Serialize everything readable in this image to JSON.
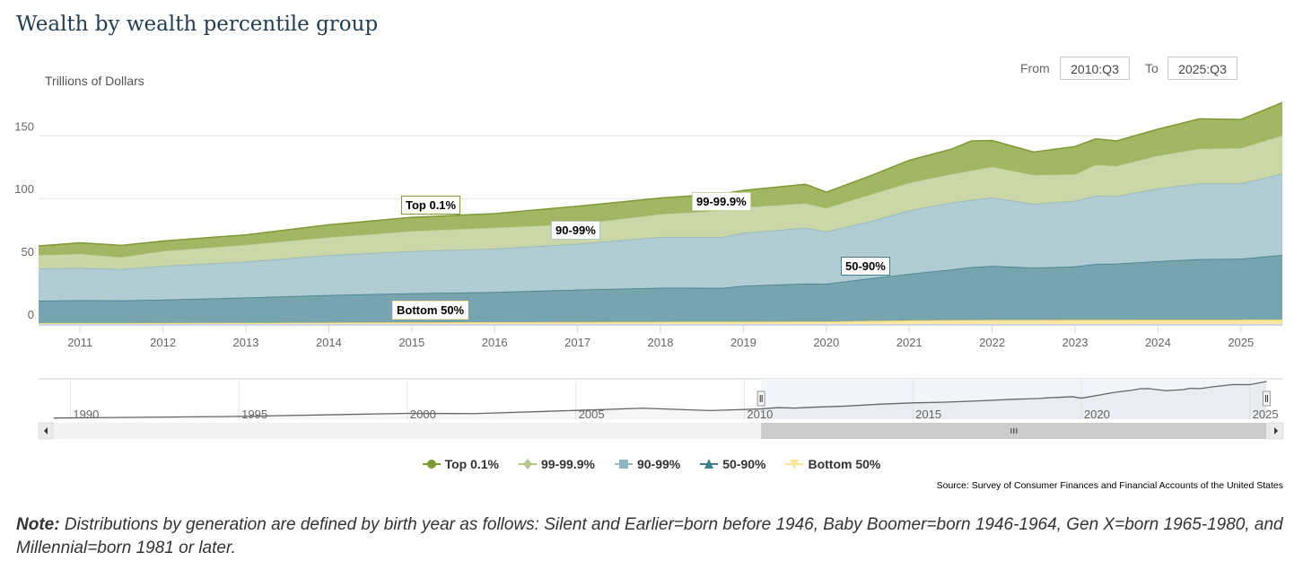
{
  "title": "Wealth by wealth percentile group",
  "range_selector": {
    "from_label": "From",
    "from_value": "2010:Q3",
    "to_label": "To",
    "to_value": "2025:Q3"
  },
  "chart_data": {
    "type": "area",
    "stacked": true,
    "title": "Wealth by wealth percentile group",
    "ylabel": "Trillions of Dollars",
    "yticks": [
      0,
      50,
      100,
      150
    ],
    "xticks": [
      "2011",
      "2012",
      "2013",
      "2014",
      "2015",
      "2016",
      "2017",
      "2018",
      "2019",
      "2020",
      "2021",
      "2022",
      "2023",
      "2024",
      "2025"
    ],
    "xlim": [
      "2010:Q3",
      "2025:Q3"
    ],
    "grid": true,
    "legend_placement": "bottom",
    "x": [
      "2010:Q3",
      "2011:Q1",
      "2011:Q3",
      "2012:Q1",
      "2013:Q1",
      "2014:Q1",
      "2015:Q1",
      "2016:Q1",
      "2017:Q1",
      "2018:Q1",
      "2018:Q4",
      "2019:Q1",
      "2019:Q4",
      "2020:Q1",
      "2020:Q3",
      "2021:Q1",
      "2021:Q3",
      "2021:Q4",
      "2022:Q1",
      "2022:Q3",
      "2023:Q1",
      "2023:Q2",
      "2023:Q3",
      "2024:Q1",
      "2024:Q3",
      "2025:Q1",
      "2025:Q3"
    ],
    "series": [
      {
        "name": "Bottom 50%",
        "color": "#fbe59a",
        "line": "#f3d36b",
        "values": [
          0.8,
          0.8,
          0.8,
          0.9,
          1.0,
          1.2,
          1.3,
          1.5,
          1.6,
          1.8,
          1.9,
          1.9,
          2.1,
          2.1,
          2.5,
          2.9,
          3.1,
          3.2,
          3.3,
          3.3,
          3.4,
          3.4,
          3.4,
          3.5,
          3.5,
          3.5,
          3.6
        ]
      },
      {
        "name": "50-90%",
        "color": "#6fa0ab",
        "line": "#3f7f8e",
        "values": [
          17.8,
          18.2,
          18.0,
          18.5,
          20.1,
          21.9,
          23.2,
          24.0,
          25.8,
          27.1,
          26.9,
          28.6,
          30.1,
          30.0,
          33.6,
          37.1,
          40.3,
          42.1,
          43.0,
          41.6,
          42.5,
          44.5,
          44.7,
          46.6,
          48.2,
          48.5,
          51.5
        ]
      },
      {
        "name": "90-99%",
        "color": "#adc9d0",
        "line": "#8fb6c1",
        "values": [
          25.6,
          25.7,
          24.9,
          26.8,
          28.6,
          31.7,
          33.5,
          34.5,
          36.5,
          40.4,
          40.4,
          42.1,
          44.4,
          41.6,
          45.2,
          50.5,
          53.3,
          53.5,
          54.5,
          50.8,
          52.2,
          54.4,
          53.7,
          57.8,
          60.3,
          60.0,
          64.7
        ]
      },
      {
        "name": "99-99.9%",
        "color": "#c8d5a3",
        "line": "#c0cf97",
        "values": [
          10.7,
          11.2,
          9.5,
          12.0,
          13.4,
          14.3,
          16.0,
          16.8,
          15.7,
          18.2,
          21.3,
          20.4,
          19.6,
          18.7,
          21.3,
          22.0,
          22.7,
          23.5,
          24.5,
          23.0,
          21.2,
          24.5,
          24.2,
          26.2,
          27.7,
          28.2,
          30.4
        ]
      },
      {
        "name": "Top 0.1%",
        "color": "#9db35b",
        "line": "#7e9a34",
        "values": [
          7.3,
          8.8,
          9.5,
          8.0,
          8.0,
          10.0,
          11.0,
          11.2,
          14.3,
          12.9,
          13.3,
          13.5,
          15.2,
          12.7,
          14.7,
          18.0,
          19.8,
          23.6,
          21.0,
          18.4,
          22.2,
          20.8,
          19.9,
          21.2,
          23.8,
          22.8,
          26.3
        ]
      }
    ],
    "navigator": {
      "xticks": [
        "1990",
        "1995",
        "2000",
        "2005",
        "2010",
        "2015",
        "2020",
        "2025"
      ],
      "x": [
        "1989:Q3",
        "1995:Q1",
        "2000:Q1",
        "2002:Q1",
        "2004:Q1",
        "2007:Q1",
        "2009:Q1",
        "2010:Q3"
      ],
      "values": [
        20,
        27,
        40,
        39,
        48,
        62,
        52,
        59
      ],
      "selected_from": "2010:Q3",
      "selected_to": "2025:Q3"
    },
    "flags": [
      {
        "series": "Top 0.1%",
        "text": "Top 0.1%"
      },
      {
        "series": "99-99.9%",
        "text": "99-99.9%"
      },
      {
        "series": "90-99%",
        "text": "90-99%"
      },
      {
        "series": "50-90%",
        "text": "50-90%"
      },
      {
        "series": "Bottom 50%",
        "text": "Bottom 50%"
      }
    ]
  },
  "legend": [
    {
      "label": "Top 0.1%",
      "color": "#7e9a34",
      "symbol": "circle"
    },
    {
      "label": "99-99.9%",
      "color": "#b3c88a",
      "symbol": "diamond"
    },
    {
      "label": "90-99%",
      "color": "#8fb6c1",
      "symbol": "square"
    },
    {
      "label": "50-90%",
      "color": "#3f7f8e",
      "symbol": "triangle"
    },
    {
      "label": "Bottom 50%",
      "color": "#fbe59a",
      "symbol": "triangle-down"
    }
  ],
  "source": "Source: Survey of Consumer Finances and Financial Accounts of the United States",
  "note": {
    "label": "Note:",
    "text": " Distributions by generation are defined by birth year as follows: Silent and Earlier=born before 1946, Baby Boomer=born 1946-1964, Gen X=born 1965-1980, and Millennial=born 1981 or later."
  }
}
